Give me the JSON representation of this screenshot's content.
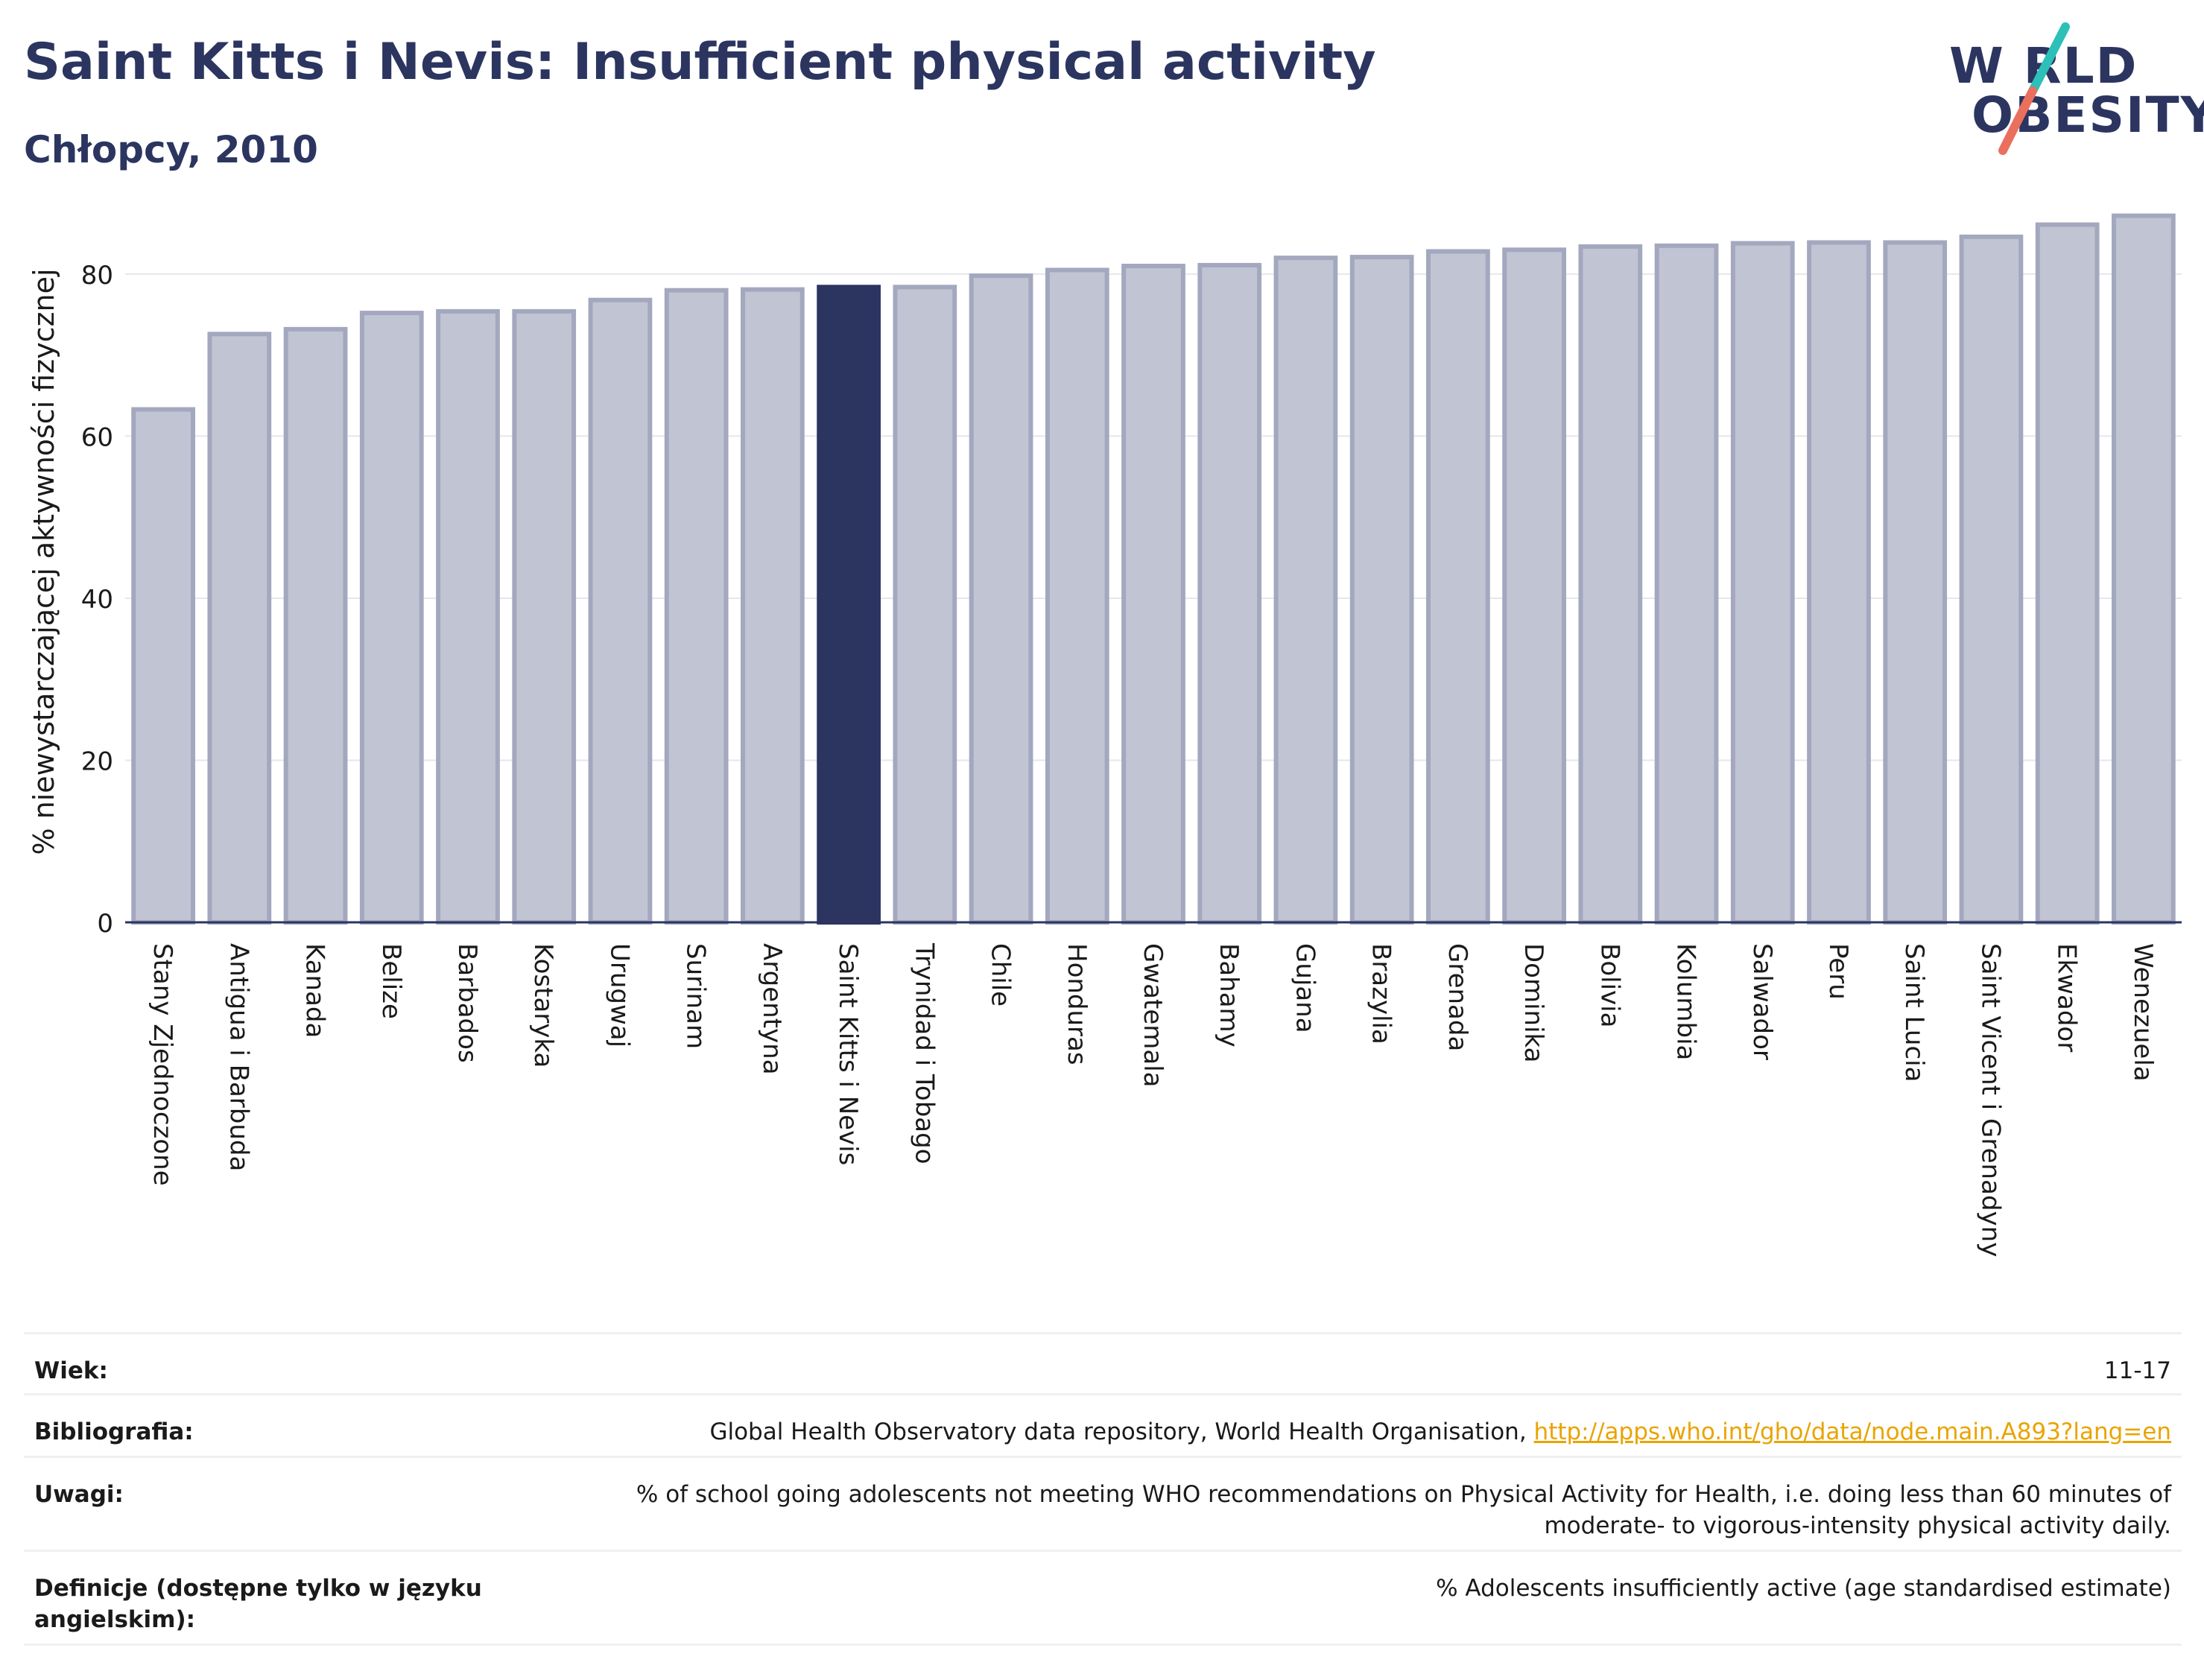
{
  "header": {
    "title": "Saint Kitts i Nevis: Insufficient physical activity",
    "subtitle": "Chłopcy, 2010"
  },
  "logo": {
    "line1": "W RLD",
    "line2": "OBESITY",
    "colors": {
      "text": "#2b3560",
      "slash_top": "#2cc0b8",
      "slash_bottom": "#ea6f5d"
    }
  },
  "chart_data": {
    "type": "bar",
    "title": "Saint Kitts i Nevis: Insufficient physical activity",
    "subtitle": "Chłopcy, 2010",
    "xlabel": "",
    "ylabel": "% niewystarczającej aktywności fizycznej",
    "ylim": [
      0,
      89
    ],
    "yticks": [
      0,
      20,
      40,
      60,
      80
    ],
    "grid": true,
    "legend": "none",
    "highlight": "Saint Kitts i Nevis",
    "colors": {
      "bar": "#c1c4d2",
      "bar_edge": "#a3a8bf",
      "highlight": "#2b3560",
      "axis": "#2b3560",
      "grid": "#e6e7ec"
    },
    "categories": [
      "Stany Zjednoczone",
      "Antigua i Barbuda",
      "Kanada",
      "Belize",
      "Barbados",
      "Kostaryka",
      "Urugwaj",
      "Surinam",
      "Argentyna",
      "Saint Kitts i Nevis",
      "Trynidad i Tobago",
      "Chile",
      "Honduras",
      "Gwatemala",
      "Bahamy",
      "Gujana",
      "Brazylia",
      "Grenada",
      "Dominika",
      "Bolivia",
      "Kolumbia",
      "Salwador",
      "Peru",
      "Saint Lucia",
      "Saint Vicent i Grenadyny",
      "Ekwador",
      "Wenezuela"
    ],
    "values": [
      63.3,
      72.6,
      73.2,
      75.2,
      75.4,
      75.4,
      76.8,
      78.0,
      78.1,
      78.4,
      78.4,
      79.8,
      80.5,
      81.0,
      81.1,
      82.0,
      82.1,
      82.8,
      83.0,
      83.4,
      83.5,
      83.8,
      83.9,
      83.9,
      84.6,
      86.1,
      87.2
    ]
  },
  "footer": {
    "rows": [
      {
        "label": "Wiek:",
        "value": "11-17"
      },
      {
        "label": "Bibliografia:",
        "value": "Global Health Observatory data repository, World Health Organisation, ",
        "link": "http://apps.who.int/gho/data/node.main.A893?lang=en"
      },
      {
        "label": "Uwagi:",
        "value": "% of school going adolescents not meeting WHO recommendations on Physical Activity for Health, i.e. doing less than 60 minutes of moderate- to vigorous-intensity physical activity daily."
      },
      {
        "label": "Definicje (dostępne tylko w języku angielskim):",
        "value": "% Adolescents insufficiently active (age standardised estimate)"
      }
    ]
  }
}
